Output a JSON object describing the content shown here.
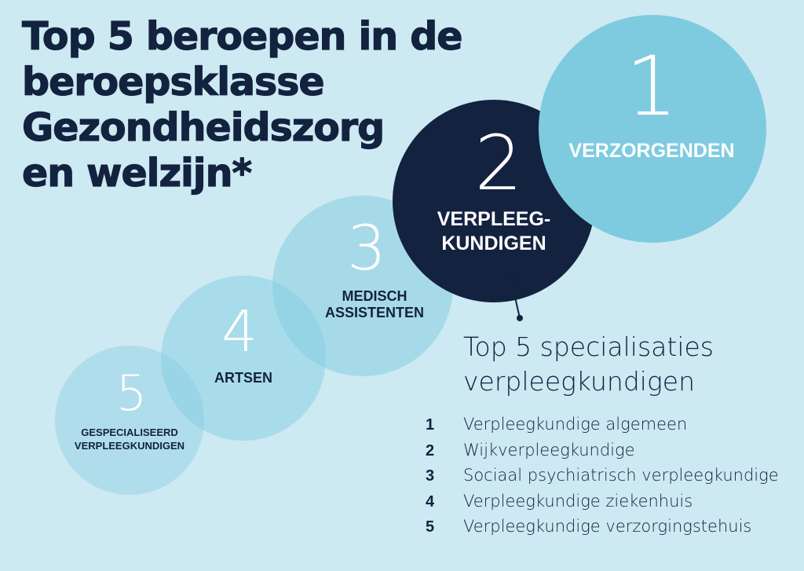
{
  "title": "Top 5 beroepen in de\nberoepsklasse\nGezondheidszorg\nen welzijn*",
  "colors": {
    "background": "#cde9f2",
    "navy": "#13223f",
    "light_blue": "#7ecbe0",
    "white": "#ffffff"
  },
  "ranking": [
    {
      "rank": "1",
      "label": "VERZORGENDEN"
    },
    {
      "rank": "2",
      "label": "VERPLEEG-\nKUNDIGEN"
    },
    {
      "rank": "3",
      "label": "MEDISCH\nASSISTENTEN"
    },
    {
      "rank": "4",
      "label": "ARTSEN"
    },
    {
      "rank": "5",
      "label": "GESPECIALISEERD\nVERPLEEGKUNDIGEN"
    }
  ],
  "specialisaties": {
    "title": "Top 5 specialisaties\nverpleegkundigen",
    "items": [
      {
        "rank": "1",
        "label": "Verpleegkundige algemeen"
      },
      {
        "rank": "2",
        "label": "Wijkverpleegkundige"
      },
      {
        "rank": "3",
        "label": "Sociaal psychiatrisch verpleegkundige"
      },
      {
        "rank": "4",
        "label": "Verpleegkundige ziekenhuis"
      },
      {
        "rank": "5",
        "label": "Verpleegkundige verzorgingstehuis"
      }
    ]
  }
}
